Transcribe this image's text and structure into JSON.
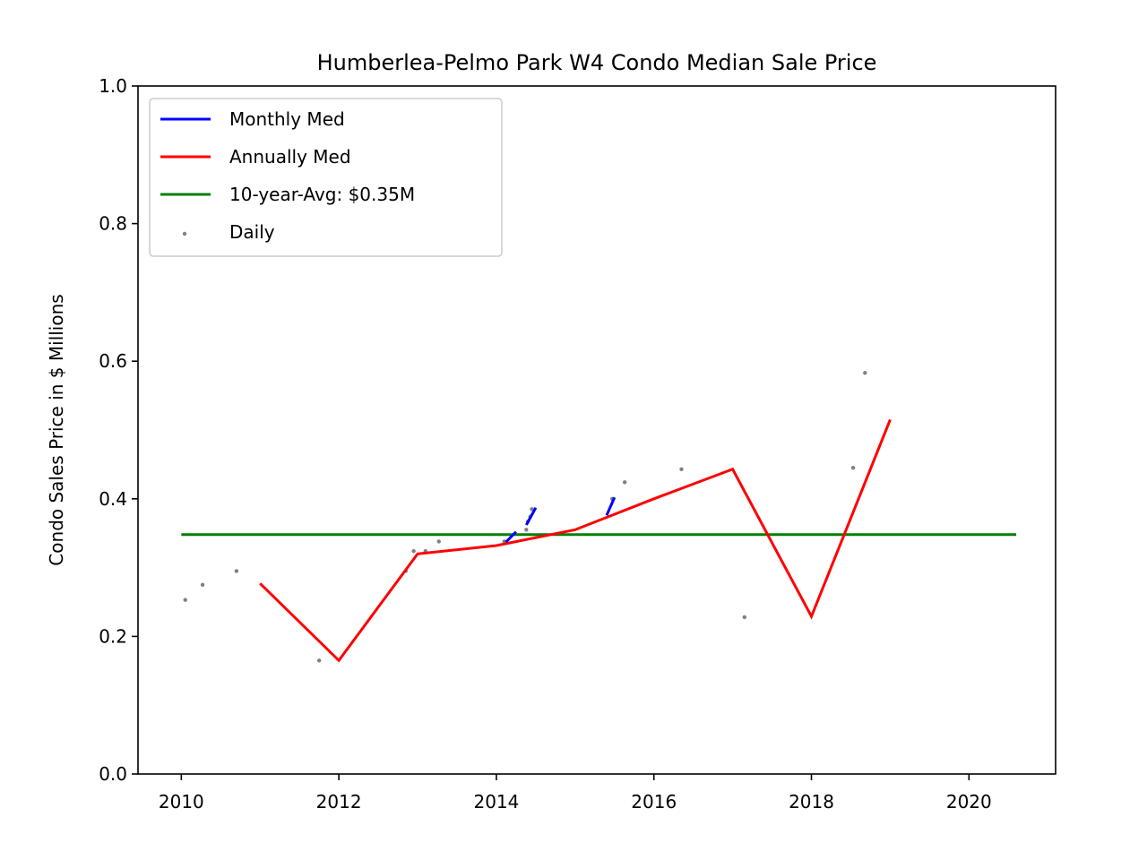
{
  "chart_data": {
    "type": "line",
    "title": "Humberlea-Pelmo Park W4 Condo Median Sale Price",
    "xlabel": "",
    "ylabel": "Condo Sales Price in $ Millions",
    "xlim": [
      2009.45,
      2021.1
    ],
    "ylim": [
      0.0,
      1.0
    ],
    "x_ticks": [
      2010,
      2012,
      2014,
      2016,
      2018,
      2020
    ],
    "x_tick_labels": [
      "2010",
      "2012",
      "2014",
      "2016",
      "2018",
      "2020"
    ],
    "y_ticks": [
      0.0,
      0.2,
      0.4,
      0.6,
      0.8,
      1.0
    ],
    "y_tick_labels": [
      "0.0",
      "0.2",
      "0.4",
      "0.6",
      "0.8",
      "1.0"
    ],
    "grid": false,
    "legend_position": "top-left",
    "legend": [
      {
        "label": "Monthly Med",
        "color": "#0000ff",
        "kind": "line"
      },
      {
        "label": "Annually Med",
        "color": "#ff0000",
        "kind": "line"
      },
      {
        "label": "10-year-Avg: $0.35M",
        "color": "#008000",
        "kind": "line"
      },
      {
        "label": "Daily",
        "color": "#808080",
        "kind": "dot"
      }
    ],
    "series": [
      {
        "name": "Monthly Med",
        "color": "#0000ff",
        "segments": [
          [
            [
              2014.12,
              0.337
            ],
            [
              2014.25,
              0.352
            ]
          ],
          [
            [
              2014.38,
              0.362
            ],
            [
              2014.5,
              0.387
            ]
          ],
          [
            [
              2015.4,
              0.376
            ],
            [
              2015.5,
              0.402
            ]
          ]
        ]
      },
      {
        "name": "Annually Med",
        "color": "#ff0000",
        "x": [
          2011,
          2012,
          2013,
          2014,
          2015,
          2016,
          2017,
          2018,
          2019
        ],
        "values": [
          0.277,
          0.165,
          0.32,
          0.332,
          0.355,
          0.4,
          0.443,
          0.229,
          0.515
        ]
      },
      {
        "name": "10-year-Avg: $0.35M",
        "color": "#008000",
        "x": [
          2010,
          2020.6
        ],
        "values": [
          0.348,
          0.348
        ]
      },
      {
        "name": "Daily",
        "color": "#808080",
        "x": [
          2010.05,
          2010.27,
          2010.7,
          2011.75,
          2012.85,
          2012.95,
          2013.1,
          2013.27,
          2014.1,
          2014.38,
          2014.4,
          2014.43,
          2014.45,
          2015.47,
          2015.63,
          2016.35,
          2017.15,
          2018.53,
          2018.68
        ],
        "values": [
          0.253,
          0.275,
          0.295,
          0.165,
          0.295,
          0.324,
          0.324,
          0.338,
          0.338,
          0.355,
          0.367,
          0.374,
          0.385,
          0.4,
          0.424,
          0.443,
          0.228,
          0.445,
          0.583
        ]
      }
    ]
  }
}
